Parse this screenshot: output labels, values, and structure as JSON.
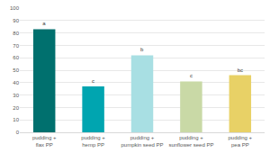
{
  "chart_data": {
    "type": "bar",
    "categories": [
      "pudding + flax PP",
      "pudding + hemp PP",
      "pudding + pumpkin seed PP",
      "pudding + sunflower seed PP",
      "pudding + pea PP"
    ],
    "values": [
      83,
      37,
      62,
      41,
      46
    ],
    "colors": [
      "#00706e",
      "#00a5b0",
      "#a8dfe3",
      "#c9d9a6",
      "#e8d166"
    ],
    "annotations": [
      "a",
      "c",
      "b",
      "c",
      "bc"
    ],
    "ylim": [
      0,
      100
    ],
    "yticks": [
      0,
      10,
      20,
      30,
      40,
      50,
      60,
      70,
      80,
      90,
      100
    ],
    "grid": true
  }
}
